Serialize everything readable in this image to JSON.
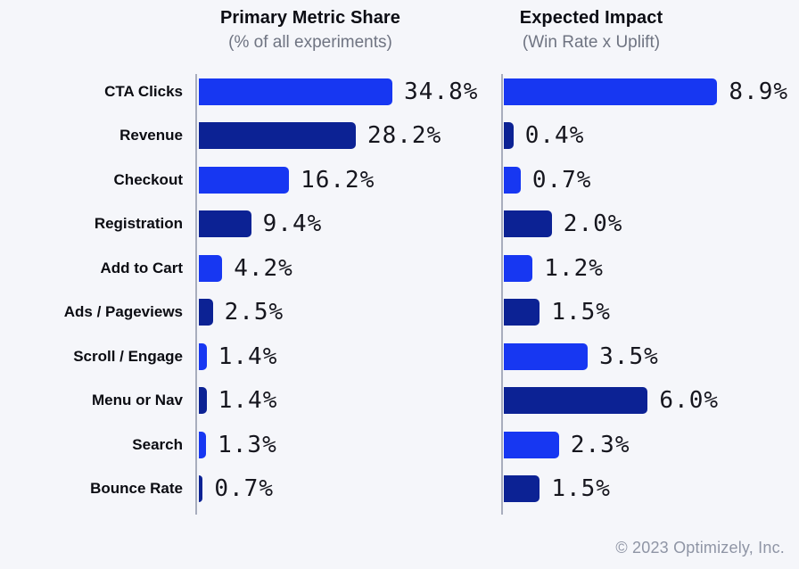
{
  "header": {
    "left": {
      "title": "Primary Metric Share",
      "subtitle": "(% of all experiments)"
    },
    "right": {
      "title": "Expected Impact",
      "subtitle": "(Win Rate x Uplift)"
    }
  },
  "chart_data": [
    {
      "type": "bar",
      "orientation": "horizontal",
      "title": "Primary Metric Share",
      "subtitle": "(% of all experiments)",
      "categories": [
        "CTA Clicks",
        "Revenue",
        "Checkout",
        "Registration",
        "Add to Cart",
        "Ads / Pageviews",
        "Scroll / Engage",
        "Menu or Nav",
        "Search",
        "Bounce Rate"
      ],
      "values": [
        34.8,
        28.2,
        16.2,
        9.4,
        4.2,
        2.5,
        1.4,
        1.4,
        1.3,
        0.7
      ],
      "value_labels": [
        "34.8%",
        "28.2%",
        "16.2%",
        "9.4%",
        "4.2%",
        "2.5%",
        "1.4%",
        "1.4%",
        "1.3%",
        "0.7%"
      ],
      "xlabel": "",
      "ylabel": "",
      "xlim": [
        0,
        35
      ],
      "grid": false,
      "legend": false
    },
    {
      "type": "bar",
      "orientation": "horizontal",
      "title": "Expected Impact",
      "subtitle": "(Win Rate x Uplift)",
      "categories": [
        "CTA Clicks",
        "Revenue",
        "Checkout",
        "Registration",
        "Add to Cart",
        "Ads / Pageviews",
        "Scroll / Engage",
        "Menu or Nav",
        "Search",
        "Bounce Rate"
      ],
      "values": [
        8.9,
        0.4,
        0.7,
        2.0,
        1.2,
        1.5,
        3.5,
        6.0,
        2.3,
        1.5
      ],
      "value_labels": [
        "8.9%",
        "0.4%",
        "0.7%",
        "2.0%",
        "1.2%",
        "1.5%",
        "3.5%",
        "6.0%",
        "2.3%",
        "1.5%"
      ],
      "xlabel": "",
      "ylabel": "",
      "xlim": [
        0,
        9
      ],
      "grid": false,
      "legend": false
    }
  ],
  "colors": {
    "bar_blue": "#1737F2",
    "bar_navy": "#0C2294",
    "axis": "#A8ADBD",
    "title_text": "#0C0D14",
    "subtitle_text": "#6F7482",
    "category_text": "#0B0C12",
    "value_text": "#16161E",
    "footer_text": "#8F95A5",
    "background": "#F5F6FA"
  },
  "footer": {
    "copyright": "© 2023 Optimizely, Inc."
  }
}
